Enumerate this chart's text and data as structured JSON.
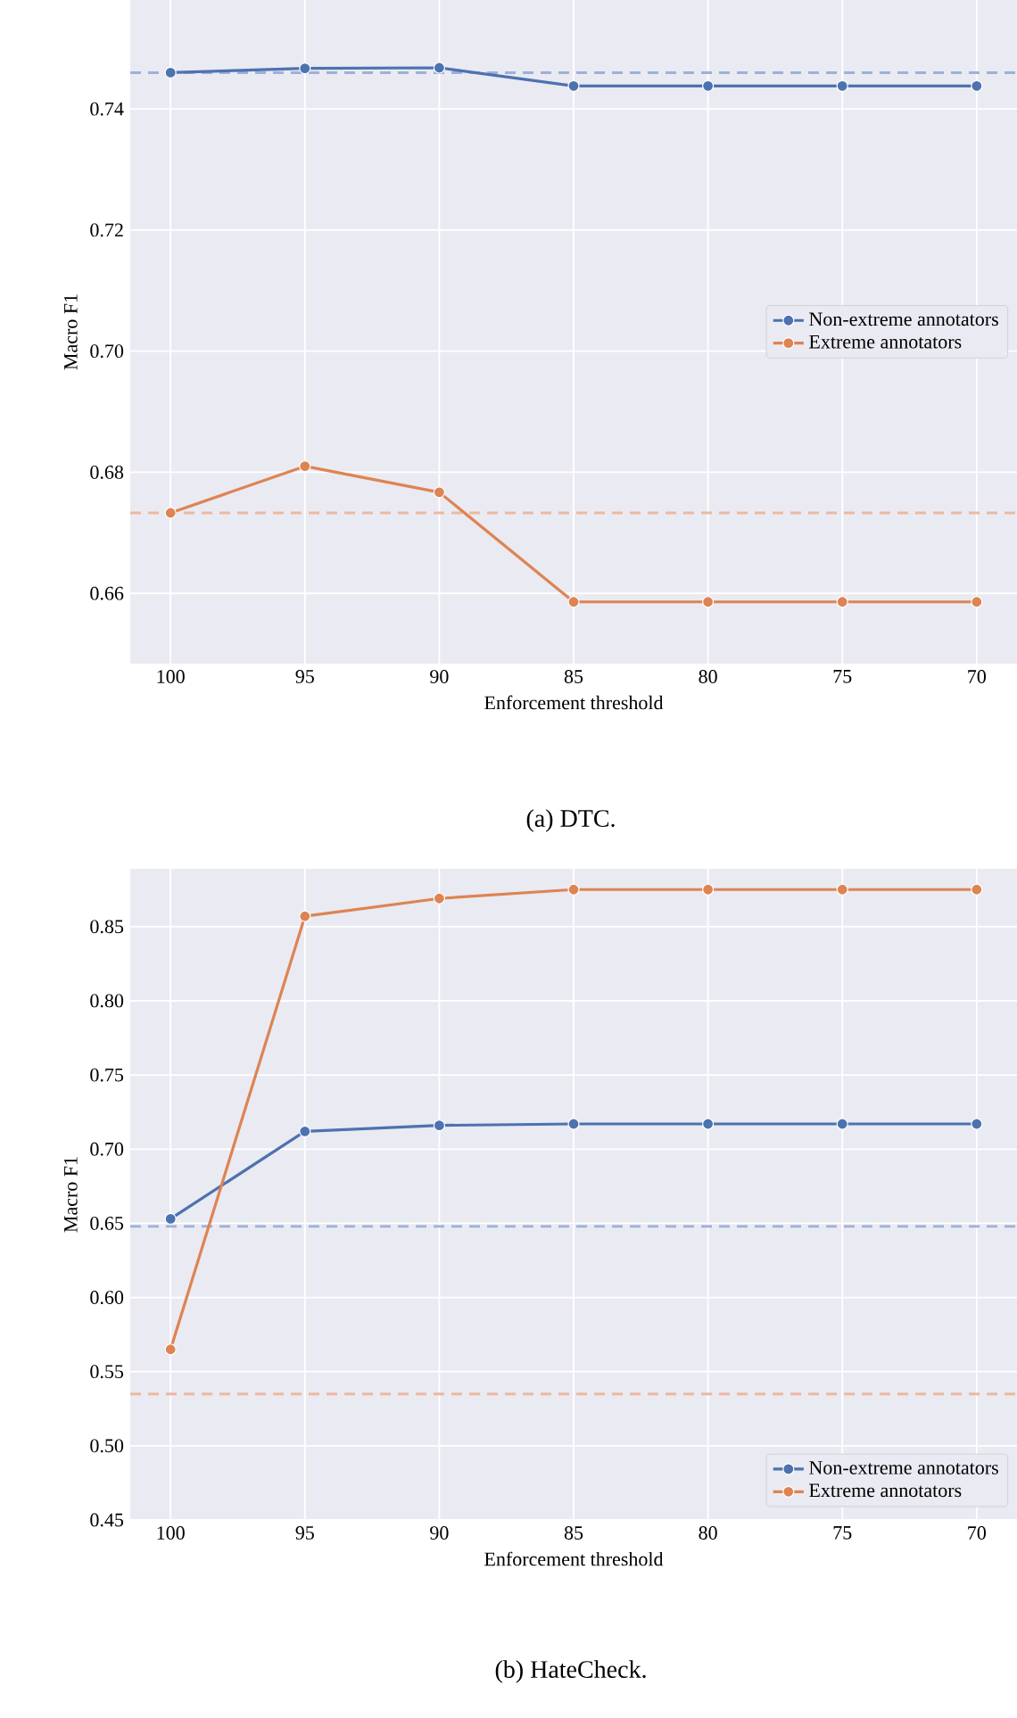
{
  "chart_data": [
    {
      "type": "line",
      "title": "(a) DTC.",
      "xlabel": "Enforcement threshold",
      "ylabel": "Macro F1",
      "categories": [
        "100",
        "95",
        "90",
        "85",
        "80",
        "75",
        "70"
      ],
      "series": [
        {
          "name": "Non-extreme annotators",
          "color": "#4c72b0",
          "values": [
            0.746,
            0.7467,
            0.7468,
            0.7438,
            0.7438,
            0.7438,
            0.7438
          ]
        },
        {
          "name": "Extreme annotators",
          "color": "#dd8452",
          "values": [
            0.6733,
            0.681,
            0.6767,
            0.6586,
            0.6586,
            0.6586,
            0.6586
          ]
        }
      ],
      "ref_lines": [
        {
          "axis": "y",
          "value": 0.746,
          "color": "#9db1d8",
          "line_style": "dashed"
        },
        {
          "axis": "y",
          "value": 0.6733,
          "color": "#ebb9a0",
          "line_style": "dashed"
        }
      ],
      "ylim": [
        0.6484,
        0.758
      ],
      "yticks": [
        0.66,
        0.68,
        {
          "value": 0.7,
          "label": "0.70"
        },
        0.72,
        0.74
      ],
      "grid": true,
      "legend": "right",
      "marker": "circle",
      "line_style": "solid"
    },
    {
      "type": "line",
      "title": "(b) HateCheck.",
      "xlabel": "Enforcement threshold",
      "ylabel": "Macro F1",
      "categories": [
        "100",
        "95",
        "90",
        "85",
        "80",
        "75",
        "70"
      ],
      "series": [
        {
          "name": "Non-extreme annotators",
          "color": "#4c72b0",
          "values": [
            0.653,
            0.712,
            0.716,
            0.717,
            0.717,
            0.717,
            0.717
          ]
        },
        {
          "name": "Extreme annotators",
          "color": "#dd8452",
          "values": [
            0.565,
            0.857,
            0.869,
            0.875,
            0.875,
            0.875,
            0.875
          ]
        }
      ],
      "ref_lines": [
        {
          "axis": "y",
          "value": 0.648,
          "color": "#9db1d8",
          "line_style": "dashed"
        },
        {
          "axis": "y",
          "value": 0.535,
          "color": "#ebb9a0",
          "line_style": "dashed"
        }
      ],
      "ylim": [
        0.45,
        0.889
      ],
      "yticks": [
        {
          "value": 0.45,
          "label": "0.45"
        },
        {
          "value": 0.5,
          "label": "0.50"
        },
        {
          "value": 0.55,
          "label": "0.55"
        },
        {
          "value": 0.6,
          "label": "0.60"
        },
        {
          "value": 0.65,
          "label": "0.65"
        },
        {
          "value": 0.7,
          "label": "0.70"
        },
        {
          "value": 0.75,
          "label": "0.75"
        },
        {
          "value": 0.8,
          "label": "0.80"
        },
        {
          "value": 0.85,
          "label": "0.85"
        }
      ],
      "grid": true,
      "legend": "bottom right",
      "marker": "circle",
      "line_style": "solid"
    }
  ]
}
